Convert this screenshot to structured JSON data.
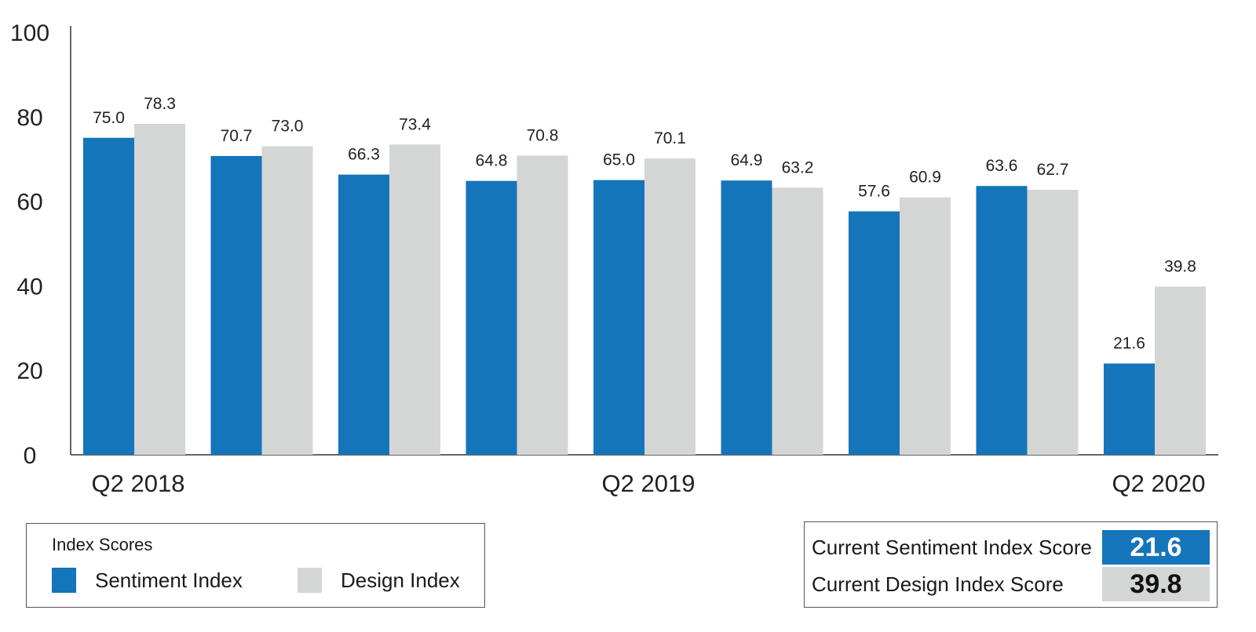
{
  "chart_data": {
    "type": "bar",
    "categories": [
      "Q2 2018",
      "",
      "",
      "",
      "Q2 2019",
      "",
      "",
      "",
      "Q2 2020"
    ],
    "x_tick_labels": [
      "Q2 2018",
      "Q2 2019",
      "Q2 2020"
    ],
    "series": [
      {
        "name": "Sentiment Index",
        "color": "#1475ba",
        "values": [
          75.0,
          70.7,
          66.3,
          64.8,
          65.0,
          64.9,
          57.6,
          63.6,
          21.6
        ]
      },
      {
        "name": "Design Index",
        "color": "#d4d5d5",
        "values": [
          78.3,
          73.0,
          73.4,
          70.8,
          70.1,
          63.2,
          60.9,
          62.7,
          39.8
        ]
      }
    ],
    "ylim": [
      0,
      100
    ],
    "y_ticks": [
      "0",
      "20",
      "40",
      "60",
      "80",
      "100"
    ],
    "grid": false,
    "data_labels": true,
    "legend_position": "bottom-left"
  },
  "legend": {
    "title": "Index Scores",
    "items": [
      {
        "label": "Sentiment Index",
        "color": "#1475ba"
      },
      {
        "label": "Design Index",
        "color": "#d4d5d5"
      }
    ]
  },
  "scores": {
    "sentiment_label": "Current Sentiment Index Score",
    "sentiment_value": "21.6",
    "sentiment_color": "#1475ba",
    "design_label": "Current Design Index Score",
    "design_value": "39.8",
    "design_color": "#d4d5d5"
  }
}
